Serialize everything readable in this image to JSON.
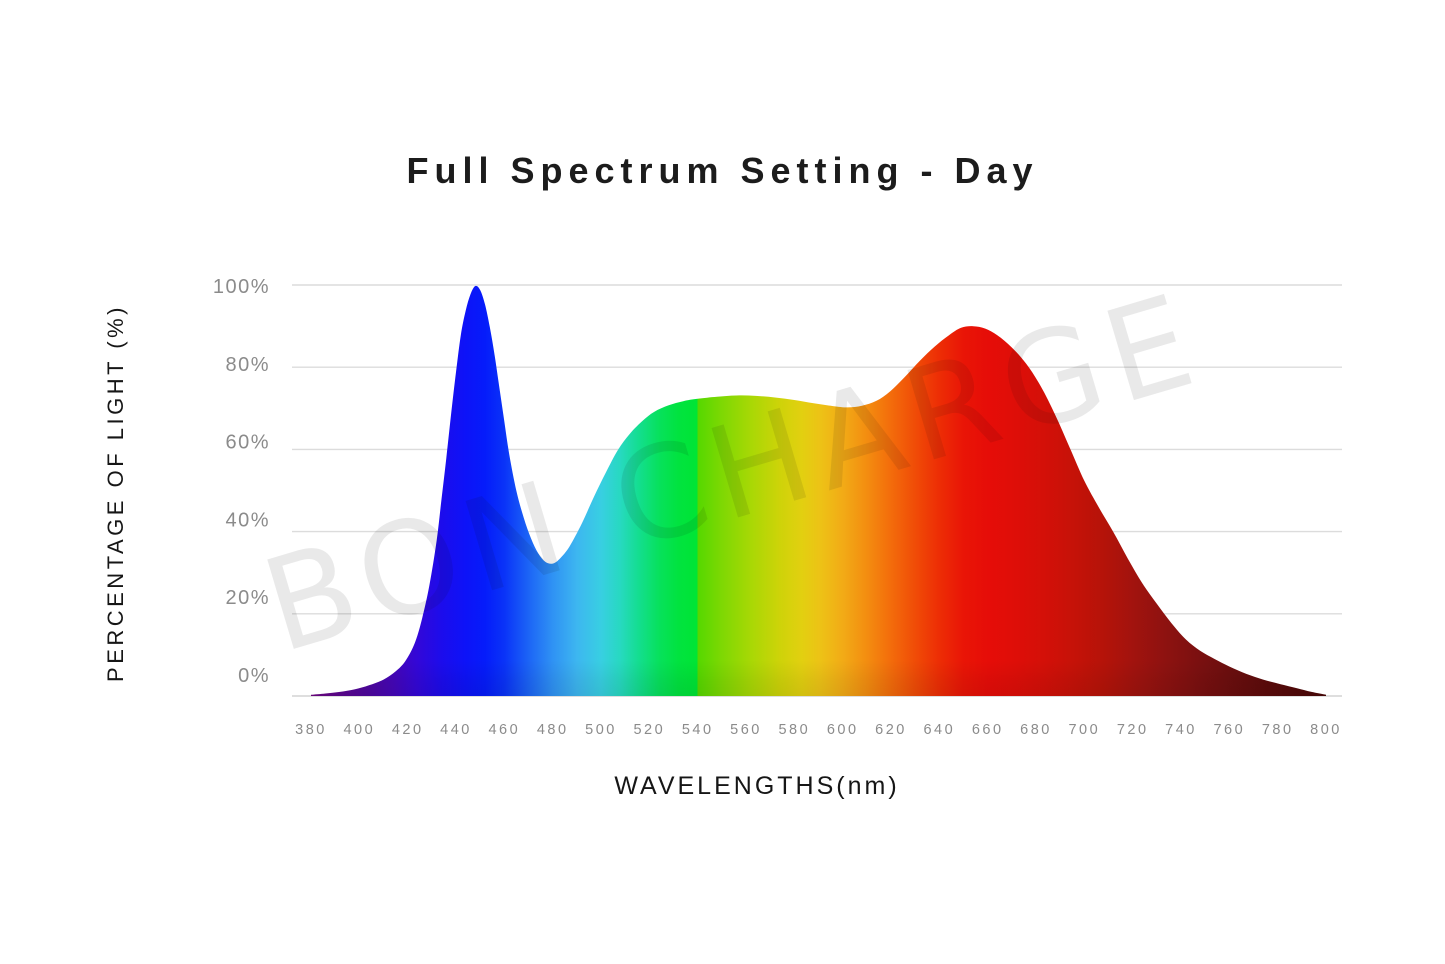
{
  "title": "Full Spectrum Setting - Day",
  "watermark": "BON CHARGE",
  "colors": {
    "background": "#ffffff",
    "title_text": "#1c1c1c",
    "axis_title_text": "#161616",
    "tick_text": "#8b8b8b",
    "gridline": "#dcdcdc",
    "baseline": "#d4d4d4",
    "watermark": "rgba(0,0,0,0.085)"
  },
  "chart_data": {
    "type": "area",
    "title": "Full Spectrum Setting - Day",
    "xlabel": "WAVELENGTHS(nm)",
    "ylabel": "PERCENTAGE OF LIGHT (%)",
    "x_ticks": [
      380,
      400,
      420,
      440,
      460,
      480,
      500,
      520,
      540,
      560,
      580,
      600,
      620,
      640,
      660,
      680,
      700,
      720,
      740,
      760,
      780,
      800
    ],
    "y_ticks": [
      {
        "label": "100%",
        "value": 100
      },
      {
        "label": "80%",
        "value": 80
      },
      {
        "label": "60%",
        "value": 60
      },
      {
        "label": "40%",
        "value": 40
      },
      {
        "label": "20%",
        "value": 20
      },
      {
        "label": "0%",
        "value": 0
      }
    ],
    "xlim": [
      380,
      800
    ],
    "ylim": [
      0,
      100
    ],
    "grid": "horizontal",
    "legend": "none",
    "series": [
      {
        "name": "spectral power distribution (% of light vs wavelength nm)",
        "points": [
          [
            380,
            0.3
          ],
          [
            386,
            0.6
          ],
          [
            392,
            1
          ],
          [
            398,
            1.6
          ],
          [
            404,
            2.6
          ],
          [
            410,
            4
          ],
          [
            415,
            6
          ],
          [
            419,
            8.5
          ],
          [
            423,
            13
          ],
          [
            426,
            19
          ],
          [
            429,
            27
          ],
          [
            432,
            38
          ],
          [
            434,
            48
          ],
          [
            436,
            58
          ],
          [
            438,
            69
          ],
          [
            440,
            79
          ],
          [
            442,
            88
          ],
          [
            444,
            94
          ],
          [
            446,
            98
          ],
          [
            448,
            100
          ],
          [
            450,
            99
          ],
          [
            452,
            95.5
          ],
          [
            454,
            90
          ],
          [
            456,
            83
          ],
          [
            458,
            75
          ],
          [
            460,
            67
          ],
          [
            462,
            59
          ],
          [
            465,
            50
          ],
          [
            468,
            43.5
          ],
          [
            471,
            38.5
          ],
          [
            474,
            34.8
          ],
          [
            477,
            32.7
          ],
          [
            480,
            32.3
          ],
          [
            483,
            33.5
          ],
          [
            487,
            36.5
          ],
          [
            492,
            42
          ],
          [
            497,
            48.5
          ],
          [
            502,
            54.5
          ],
          [
            507,
            60
          ],
          [
            512,
            64
          ],
          [
            517,
            67
          ],
          [
            522,
            69.3
          ],
          [
            528,
            70.9
          ],
          [
            534,
            71.9
          ],
          [
            540,
            72.5
          ],
          [
            548,
            73
          ],
          [
            556,
            73.3
          ],
          [
            564,
            73.2
          ],
          [
            572,
            72.8
          ],
          [
            580,
            72.2
          ],
          [
            588,
            71.4
          ],
          [
            596,
            70.7
          ],
          [
            602,
            70.4
          ],
          [
            608,
            70.8
          ],
          [
            614,
            72
          ],
          [
            620,
            74.5
          ],
          [
            626,
            78
          ],
          [
            632,
            81.8
          ],
          [
            638,
            85.2
          ],
          [
            644,
            88
          ],
          [
            649,
            89.8
          ],
          [
            654,
            90.2
          ],
          [
            659,
            89.6
          ],
          [
            664,
            88
          ],
          [
            670,
            85
          ],
          [
            676,
            81
          ],
          [
            682,
            75.5
          ],
          [
            688,
            68.5
          ],
          [
            694,
            60.5
          ],
          [
            700,
            52.5
          ],
          [
            706,
            46
          ],
          [
            712,
            40
          ],
          [
            718,
            33.5
          ],
          [
            724,
            27.5
          ],
          [
            730,
            22.5
          ],
          [
            736,
            17.8
          ],
          [
            742,
            13.8
          ],
          [
            748,
            11
          ],
          [
            754,
            9
          ],
          [
            760,
            7.2
          ],
          [
            767,
            5.4
          ],
          [
            774,
            4
          ],
          [
            781,
            2.9
          ],
          [
            788,
            1.9
          ],
          [
            794,
            1
          ],
          [
            800,
            0.3
          ]
        ]
      }
    ],
    "spectrum_gradient_stops": [
      {
        "wl": 380,
        "color": "#6f0782"
      },
      {
        "wl": 392,
        "color": "#5c078f"
      },
      {
        "wl": 404,
        "color": "#4e079f"
      },
      {
        "wl": 414,
        "color": "#4506b8"
      },
      {
        "wl": 424,
        "color": "#3307d8"
      },
      {
        "wl": 434,
        "color": "#1c0cec"
      },
      {
        "wl": 444,
        "color": "#0d13f8"
      },
      {
        "wl": 452,
        "color": "#051cfa"
      },
      {
        "wl": 460,
        "color": "#0a33f8"
      },
      {
        "wl": 470,
        "color": "#1c64f6"
      },
      {
        "wl": 480,
        "color": "#2f92f4"
      },
      {
        "wl": 490,
        "color": "#3db6f0"
      },
      {
        "wl": 500,
        "color": "#38cfe2"
      },
      {
        "wl": 508,
        "color": "#27d9c0"
      },
      {
        "wl": 516,
        "color": "#13de8d"
      },
      {
        "wl": 524,
        "color": "#07e15c"
      },
      {
        "wl": 532,
        "color": "#01e33f"
      },
      {
        "wl": 540,
        "color": "#00e534"
      },
      {
        "wl": 540,
        "color": "#55d800"
      },
      {
        "wl": 550,
        "color": "#7ed803"
      },
      {
        "wl": 562,
        "color": "#a8d805"
      },
      {
        "wl": 574,
        "color": "#ced309"
      },
      {
        "wl": 583,
        "color": "#e2d010"
      },
      {
        "wl": 591,
        "color": "#edc216"
      },
      {
        "wl": 600,
        "color": "#f2ab16"
      },
      {
        "wl": 610,
        "color": "#f38d10"
      },
      {
        "wl": 620,
        "color": "#f36c0b"
      },
      {
        "wl": 630,
        "color": "#f04c07"
      },
      {
        "wl": 640,
        "color": "#ed2d05"
      },
      {
        "wl": 650,
        "color": "#e91506"
      },
      {
        "wl": 660,
        "color": "#e60d08"
      },
      {
        "wl": 672,
        "color": "#de0e08"
      },
      {
        "wl": 684,
        "color": "#d31008"
      },
      {
        "wl": 696,
        "color": "#c51208"
      },
      {
        "wl": 708,
        "color": "#b51309"
      },
      {
        "wl": 720,
        "color": "#a2130e"
      },
      {
        "wl": 734,
        "color": "#8d1210"
      },
      {
        "wl": 748,
        "color": "#7a1010"
      },
      {
        "wl": 762,
        "color": "#6a0e0e"
      },
      {
        "wl": 776,
        "color": "#5c0b0b"
      },
      {
        "wl": 788,
        "color": "#520909"
      },
      {
        "wl": 800,
        "color": "#4a0808"
      }
    ]
  }
}
